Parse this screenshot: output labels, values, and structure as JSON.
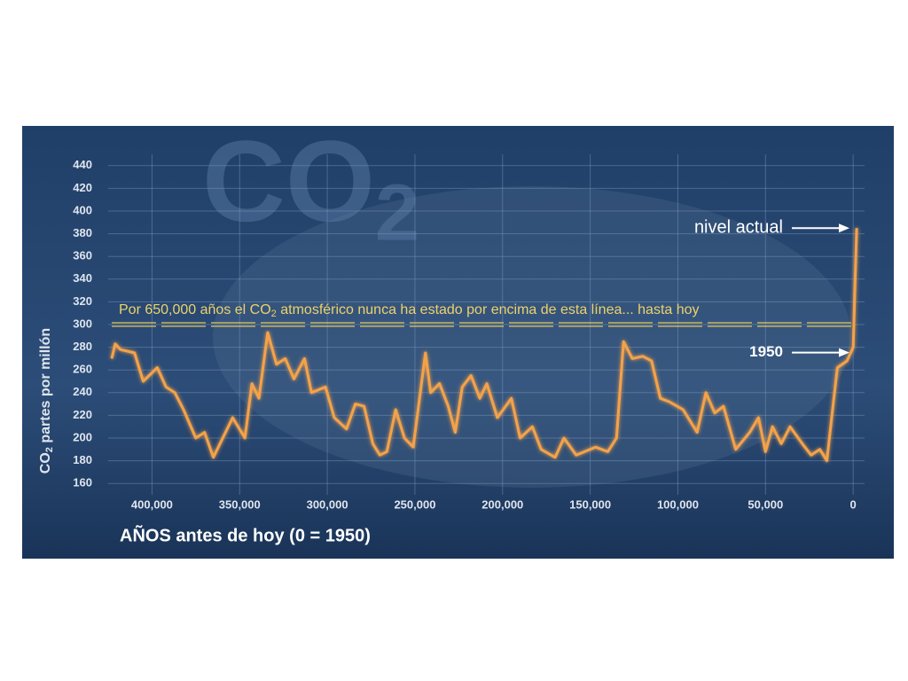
{
  "chart_data": {
    "type": "line",
    "watermark_parts": [
      "CO",
      "2"
    ],
    "ylabel_parts": [
      "CO",
      "2",
      " partes por millón"
    ],
    "xlabel": "AÑOS antes de hoy (0 = 1950)",
    "threshold_parts": [
      "Por 650,000 años el CO",
      "2",
      " atmosférico nunca ha estado por encima de esta línea... hasta hoy"
    ],
    "threshold": 300,
    "annotations": [
      "nivel actual",
      "1950"
    ],
    "color": "#f4a24a",
    "x": [
      423000,
      421000,
      418000,
      410000,
      405000,
      397000,
      392000,
      387000,
      382000,
      375000,
      370000,
      365000,
      354000,
      347000,
      343000,
      339000,
      334000,
      329000,
      324000,
      319000,
      313000,
      309000,
      301000,
      296000,
      289000,
      284000,
      279000,
      274000,
      270000,
      266000,
      261000,
      256000,
      251000,
      244000,
      241000,
      236000,
      231000,
      227000,
      223000,
      218000,
      213000,
      209000,
      203000,
      195000,
      190000,
      183000,
      178000,
      170000,
      165000,
      158000,
      147000,
      140000,
      135000,
      131000,
      126000,
      120000,
      115000,
      110000,
      105000,
      97000,
      89000,
      84000,
      79000,
      74000,
      67000,
      59000,
      54000,
      50000,
      46000,
      41000,
      36000,
      29000,
      24000,
      19000,
      15000,
      11000,
      9000,
      3500,
      0,
      -2000
    ],
    "values": [
      270,
      283,
      278,
      275,
      250,
      262,
      245,
      240,
      225,
      200,
      205,
      183,
      218,
      200,
      248,
      235,
      293,
      265,
      270,
      252,
      270,
      240,
      245,
      218,
      208,
      230,
      228,
      195,
      185,
      188,
      225,
      200,
      192,
      275,
      240,
      248,
      228,
      205,
      245,
      255,
      235,
      248,
      218,
      235,
      200,
      210,
      190,
      183,
      200,
      185,
      192,
      188,
      200,
      285,
      270,
      272,
      268,
      235,
      232,
      225,
      205,
      240,
      222,
      228,
      190,
      205,
      218,
      188,
      210,
      195,
      210,
      195,
      185,
      190,
      180,
      235,
      262,
      268,
      280,
      385
    ],
    "xlim": [
      425000,
      -6500
    ],
    "xticks": [
      {
        "value": 400000,
        "label": "400,000"
      },
      {
        "value": 350000,
        "label": "350,000"
      },
      {
        "value": 300000,
        "label": "300,000"
      },
      {
        "value": 250000,
        "label": "250,000"
      },
      {
        "value": 200000,
        "label": "200,000"
      },
      {
        "value": 150000,
        "label": "150,000"
      },
      {
        "value": 100000,
        "label": "100,000"
      },
      {
        "value": 50000,
        "label": "50,000"
      },
      0
    ],
    "ylim": [
      150,
      450
    ],
    "yticks": [
      160,
      180,
      200,
      220,
      240,
      260,
      280,
      300,
      320,
      340,
      360,
      380,
      400,
      420,
      440
    ],
    "grid": true
  }
}
